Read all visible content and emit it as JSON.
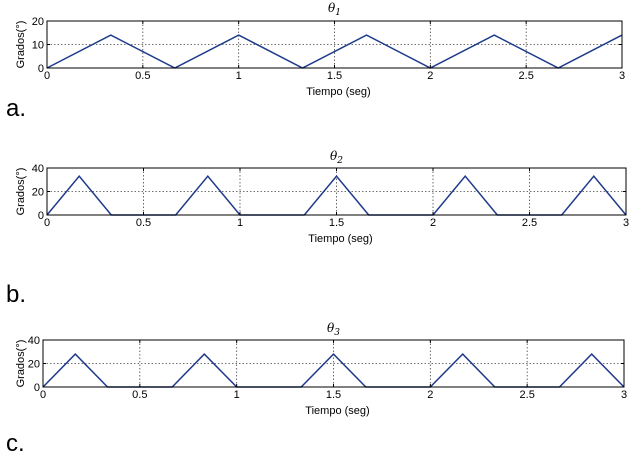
{
  "chart_data": [
    {
      "type": "line",
      "title": "θ1",
      "xlabel": "Tiempo (seg)",
      "ylabel": "Grados(°)",
      "xlim": [
        0,
        3
      ],
      "ylim": [
        0,
        20
      ],
      "xticks": [
        "0",
        "0.5",
        "1",
        "1.5",
        "2",
        "2.5",
        "3"
      ],
      "yticks": [
        "0",
        "10",
        "20"
      ],
      "grid": true,
      "color": "#1f3a8a",
      "panel_label": "a.",
      "series": [
        {
          "x": [
            0,
            0.333,
            0.667,
            1.0,
            1.333,
            1.667,
            2.0,
            2.333,
            2.667,
            3.0
          ],
          "y": [
            0,
            14,
            0,
            14,
            0,
            14,
            0,
            14,
            0,
            14
          ]
        }
      ]
    },
    {
      "type": "line",
      "title": "θ2",
      "xlabel": "Tiempo (seg)",
      "ylabel": "Grados(°)",
      "xlim": [
        0,
        3
      ],
      "ylim": [
        0,
        40
      ],
      "xticks": [
        "0",
        "0.5",
        "1",
        "1.5",
        "2",
        "2.5",
        "3"
      ],
      "yticks": [
        "0",
        "20",
        "40"
      ],
      "grid": true,
      "color": "#1f3a8a",
      "panel_label": "b.",
      "series": [
        {
          "x": [
            0,
            0.167,
            0.333,
            0.667,
            0.833,
            1.0,
            1.333,
            1.5,
            1.667,
            2.0,
            2.167,
            2.333,
            2.667,
            2.833,
            3.0
          ],
          "y": [
            0,
            33,
            0,
            0,
            33,
            0,
            0,
            33,
            0,
            0,
            33,
            0,
            0,
            33,
            0
          ]
        }
      ]
    },
    {
      "type": "line",
      "title": "θ3",
      "xlabel": "Tiempo (seg)",
      "ylabel": "Grados(°)",
      "xlim": [
        0,
        3
      ],
      "ylim": [
        0,
        40
      ],
      "xticks": [
        "0",
        "0.5",
        "1",
        "1.5",
        "2",
        "2.5",
        "3"
      ],
      "yticks": [
        "0",
        "20",
        "40"
      ],
      "grid": true,
      "color": "#1f3a8a",
      "panel_label": "c.",
      "series": [
        {
          "x": [
            0,
            0.167,
            0.333,
            0.667,
            0.833,
            1.0,
            1.333,
            1.5,
            1.667,
            2.0,
            2.167,
            2.333,
            2.667,
            2.833,
            3.0
          ],
          "y": [
            0,
            28,
            0,
            0,
            28,
            0,
            0,
            28,
            0,
            0,
            28,
            0,
            0,
            28,
            0
          ]
        }
      ]
    }
  ]
}
